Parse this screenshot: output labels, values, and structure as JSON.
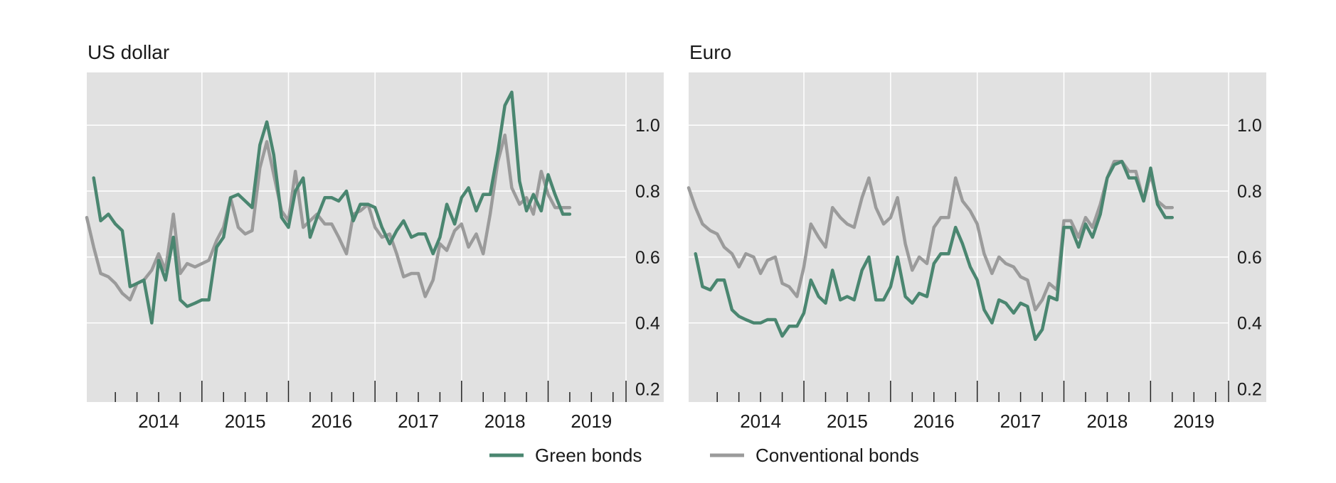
{
  "colors": {
    "green": "#4a8670",
    "conventional": "#9b9b9b",
    "plot_background": "#e1e1e1",
    "grid": "#ffffff"
  },
  "legend": [
    {
      "label": "Green bonds",
      "color": "#4a8670"
    },
    {
      "label": "Conventional bonds",
      "color": "#9b9b9b"
    }
  ],
  "chart_data": [
    {
      "type": "line",
      "title": "US dollar",
      "xlabel": "",
      "ylabel": "",
      "x_axis": "year",
      "xlim": [
        2013.67,
        2019.9
      ],
      "ylim": [
        0.16,
        1.16
      ],
      "yticks": [
        0.2,
        0.4,
        0.6,
        0.8,
        1.0
      ],
      "ytick_labels": [
        "0.2",
        "0.4",
        "0.6",
        "0.8",
        "1.0"
      ],
      "xtick_labels": [
        "2014",
        "2015",
        "2016",
        "2017",
        "2018",
        "2019"
      ],
      "grid": true,
      "y_axis_side": "right",
      "series": [
        {
          "name": "Green bonds",
          "x": [
            2013.75,
            2013.83,
            2013.92,
            2014.0,
            2014.08,
            2014.17,
            2014.25,
            2014.33,
            2014.42,
            2014.5,
            2014.58,
            2014.67,
            2014.75,
            2014.83,
            2014.92,
            2015.0,
            2015.08,
            2015.17,
            2015.25,
            2015.33,
            2015.42,
            2015.5,
            2015.58,
            2015.67,
            2015.75,
            2015.83,
            2015.92,
            2016.0,
            2016.08,
            2016.17,
            2016.25,
            2016.33,
            2016.42,
            2016.5,
            2016.58,
            2016.67,
            2016.75,
            2016.83,
            2016.92,
            2017.0,
            2017.08,
            2017.17,
            2017.25,
            2017.33,
            2017.42,
            2017.5,
            2017.58,
            2017.67,
            2017.75,
            2017.83,
            2017.92,
            2018.0,
            2018.08,
            2018.17,
            2018.25,
            2018.33,
            2018.42,
            2018.5,
            2018.58,
            2018.67,
            2018.75,
            2018.83,
            2018.92,
            2019.0,
            2019.08,
            2019.17,
            2019.25
          ],
          "values": [
            0.84,
            0.71,
            0.73,
            0.7,
            0.68,
            0.51,
            0.52,
            0.53,
            0.4,
            0.59,
            0.53,
            0.66,
            0.47,
            0.45,
            0.46,
            0.47,
            0.47,
            0.63,
            0.66,
            0.78,
            0.79,
            0.77,
            0.75,
            0.94,
            1.01,
            0.91,
            0.72,
            0.69,
            0.8,
            0.84,
            0.66,
            0.72,
            0.78,
            0.78,
            0.77,
            0.8,
            0.71,
            0.76,
            0.76,
            0.75,
            0.69,
            0.64,
            0.68,
            0.71,
            0.66,
            0.67,
            0.67,
            0.61,
            0.66,
            0.76,
            0.7,
            0.78,
            0.81,
            0.74,
            0.79,
            0.79,
            0.92,
            1.06,
            1.1,
            0.83,
            0.74,
            0.79,
            0.74,
            0.85,
            0.79,
            0.73,
            0.73
          ]
        },
        {
          "name": "Conventional bonds",
          "x": [
            2013.67,
            2013.75,
            2013.83,
            2013.92,
            2014.0,
            2014.08,
            2014.17,
            2014.25,
            2014.33,
            2014.42,
            2014.5,
            2014.58,
            2014.67,
            2014.75,
            2014.83,
            2014.92,
            2015.0,
            2015.08,
            2015.17,
            2015.25,
            2015.33,
            2015.42,
            2015.5,
            2015.58,
            2015.67,
            2015.75,
            2015.83,
            2015.92,
            2016.0,
            2016.08,
            2016.17,
            2016.25,
            2016.33,
            2016.42,
            2016.5,
            2016.58,
            2016.67,
            2016.75,
            2016.83,
            2016.92,
            2017.0,
            2017.08,
            2017.17,
            2017.25,
            2017.33,
            2017.42,
            2017.5,
            2017.58,
            2017.67,
            2017.75,
            2017.83,
            2017.92,
            2018.0,
            2018.08,
            2018.17,
            2018.25,
            2018.33,
            2018.42,
            2018.5,
            2018.58,
            2018.67,
            2018.75,
            2018.83,
            2018.92,
            2019.0,
            2019.08,
            2019.17,
            2019.25
          ],
          "values": [
            0.72,
            0.63,
            0.55,
            0.54,
            0.52,
            0.49,
            0.47,
            0.52,
            0.53,
            0.56,
            0.61,
            0.56,
            0.73,
            0.55,
            0.58,
            0.57,
            0.58,
            0.59,
            0.65,
            0.69,
            0.78,
            0.69,
            0.67,
            0.68,
            0.87,
            0.95,
            0.85,
            0.74,
            0.71,
            0.86,
            0.69,
            0.71,
            0.73,
            0.7,
            0.7,
            0.66,
            0.61,
            0.73,
            0.74,
            0.76,
            0.69,
            0.66,
            0.67,
            0.61,
            0.54,
            0.55,
            0.55,
            0.48,
            0.53,
            0.64,
            0.62,
            0.68,
            0.7,
            0.63,
            0.67,
            0.61,
            0.73,
            0.89,
            0.97,
            0.81,
            0.76,
            0.78,
            0.73,
            0.86,
            0.79,
            0.75,
            0.75,
            0.75
          ]
        }
      ]
    },
    {
      "type": "line",
      "title": "Euro",
      "xlabel": "",
      "ylabel": "",
      "x_axis": "year",
      "xlim": [
        2013.67,
        2019.9
      ],
      "ylim": [
        0.16,
        1.16
      ],
      "yticks": [
        0.2,
        0.4,
        0.6,
        0.8,
        1.0
      ],
      "ytick_labels": [
        "0.2",
        "0.4",
        "0.6",
        "0.8",
        "1.0"
      ],
      "xtick_labels": [
        "2014",
        "2015",
        "2016",
        "2017",
        "2018",
        "2019"
      ],
      "grid": true,
      "y_axis_side": "right",
      "series": [
        {
          "name": "Green bonds",
          "x": [
            2013.75,
            2013.83,
            2013.92,
            2014.0,
            2014.08,
            2014.17,
            2014.25,
            2014.33,
            2014.42,
            2014.5,
            2014.58,
            2014.67,
            2014.75,
            2014.83,
            2014.92,
            2015.0,
            2015.08,
            2015.17,
            2015.25,
            2015.33,
            2015.42,
            2015.5,
            2015.58,
            2015.67,
            2015.75,
            2015.83,
            2015.92,
            2016.0,
            2016.08,
            2016.17,
            2016.25,
            2016.33,
            2016.42,
            2016.5,
            2016.58,
            2016.67,
            2016.75,
            2016.83,
            2016.92,
            2017.0,
            2017.08,
            2017.17,
            2017.25,
            2017.33,
            2017.42,
            2017.5,
            2017.58,
            2017.67,
            2017.75,
            2017.83,
            2017.92,
            2018.0,
            2018.08,
            2018.17,
            2018.25,
            2018.33,
            2018.42,
            2018.5,
            2018.58,
            2018.67,
            2018.75,
            2018.83,
            2018.92,
            2019.0,
            2019.08,
            2019.17,
            2019.25
          ],
          "values": [
            0.61,
            0.51,
            0.5,
            0.53,
            0.53,
            0.44,
            0.42,
            0.41,
            0.4,
            0.4,
            0.41,
            0.41,
            0.36,
            0.39,
            0.39,
            0.43,
            0.53,
            0.48,
            0.46,
            0.56,
            0.47,
            0.48,
            0.47,
            0.56,
            0.6,
            0.47,
            0.47,
            0.51,
            0.6,
            0.48,
            0.46,
            0.49,
            0.48,
            0.58,
            0.61,
            0.61,
            0.69,
            0.64,
            0.57,
            0.53,
            0.44,
            0.4,
            0.47,
            0.46,
            0.43,
            0.46,
            0.45,
            0.35,
            0.38,
            0.48,
            0.47,
            0.69,
            0.69,
            0.63,
            0.7,
            0.66,
            0.73,
            0.84,
            0.88,
            0.89,
            0.84,
            0.84,
            0.77,
            0.87,
            0.76,
            0.72,
            0.72
          ]
        },
        {
          "name": "Conventional bonds",
          "x": [
            2013.67,
            2013.75,
            2013.83,
            2013.92,
            2014.0,
            2014.08,
            2014.17,
            2014.25,
            2014.33,
            2014.42,
            2014.5,
            2014.58,
            2014.67,
            2014.75,
            2014.83,
            2014.92,
            2015.0,
            2015.08,
            2015.17,
            2015.25,
            2015.33,
            2015.42,
            2015.5,
            2015.58,
            2015.67,
            2015.75,
            2015.83,
            2015.92,
            2016.0,
            2016.08,
            2016.17,
            2016.25,
            2016.33,
            2016.42,
            2016.5,
            2016.58,
            2016.67,
            2016.75,
            2016.83,
            2016.92,
            2017.0,
            2017.08,
            2017.17,
            2017.25,
            2017.33,
            2017.42,
            2017.5,
            2017.58,
            2017.67,
            2017.75,
            2017.83,
            2017.92,
            2018.0,
            2018.08,
            2018.17,
            2018.25,
            2018.33,
            2018.42,
            2018.5,
            2018.58,
            2018.67,
            2018.75,
            2018.83,
            2018.92,
            2019.0,
            2019.08,
            2019.17,
            2019.25
          ],
          "values": [
            0.81,
            0.75,
            0.7,
            0.68,
            0.67,
            0.63,
            0.61,
            0.57,
            0.61,
            0.6,
            0.55,
            0.59,
            0.6,
            0.52,
            0.51,
            0.48,
            0.57,
            0.7,
            0.66,
            0.63,
            0.75,
            0.72,
            0.7,
            0.69,
            0.78,
            0.84,
            0.75,
            0.7,
            0.72,
            0.78,
            0.64,
            0.56,
            0.6,
            0.58,
            0.69,
            0.72,
            0.72,
            0.84,
            0.77,
            0.74,
            0.7,
            0.61,
            0.55,
            0.6,
            0.58,
            0.57,
            0.54,
            0.53,
            0.44,
            0.47,
            0.52,
            0.5,
            0.71,
            0.71,
            0.66,
            0.72,
            0.69,
            0.76,
            0.84,
            0.89,
            0.89,
            0.86,
            0.86,
            0.77,
            0.85,
            0.77,
            0.75,
            0.75
          ]
        }
      ]
    }
  ]
}
